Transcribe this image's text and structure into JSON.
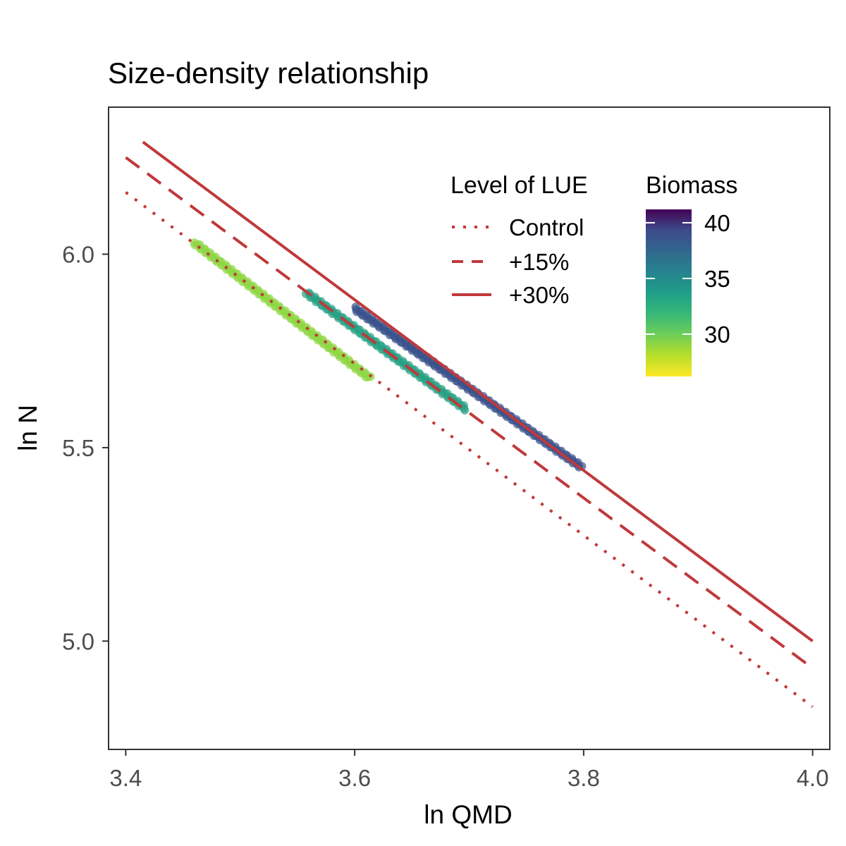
{
  "chart_data": {
    "type": "scatter",
    "title": "Size-density relationship",
    "xlabel": "ln QMD",
    "ylabel": "ln N",
    "xlim": [
      3.385,
      4.015
    ],
    "ylim": [
      4.72,
      6.38
    ],
    "x_ticks": [
      3.4,
      3.6,
      3.8,
      4.0
    ],
    "x_tick_labels": [
      "3.4",
      "3.6",
      "3.8",
      "4.0"
    ],
    "y_ticks": [
      5.0,
      5.5,
      6.0
    ],
    "y_tick_labels": [
      "5.0",
      "5.5",
      "6.0"
    ],
    "grid": false,
    "lines_legend_title": "Level of LUE",
    "lines": [
      {
        "name": "Control",
        "style": "dotted",
        "color": "#c0393b",
        "x": [
          3.4,
          4.0
        ],
        "y": [
          6.16,
          4.83
        ]
      },
      {
        "name": "+15%",
        "style": "dashed",
        "color": "#c0393b",
        "x": [
          3.4,
          4.0
        ],
        "y": [
          6.25,
          4.93
        ]
      },
      {
        "name": "+30%",
        "style": "solid",
        "color": "#c0393b",
        "x": [
          3.415,
          4.0
        ],
        "y": [
          6.29,
          5.0
        ]
      }
    ],
    "colorbar": {
      "title": "Biomass",
      "min": 26.2,
      "max": 41.2,
      "ticks": [
        30,
        35,
        40
      ],
      "tick_labels": [
        "30",
        "35",
        "40"
      ],
      "palette": "viridis (reversed: high = dark purple, low = yellow)"
    },
    "point_series": [
      {
        "biomass": 30.5,
        "color": "#8fd744",
        "x_start": 3.46,
        "y_start": 6.03,
        "x_end": 3.613,
        "y_end": 5.68
      },
      {
        "biomass": 35.5,
        "color": "#26a185",
        "x_start": 3.558,
        "y_start": 5.9,
        "x_end": 3.697,
        "y_end": 5.6
      },
      {
        "biomass": 39.5,
        "color": "#3b528b",
        "x_start": 3.6,
        "y_start": 5.86,
        "x_end": 3.798,
        "y_end": 5.45
      }
    ]
  }
}
